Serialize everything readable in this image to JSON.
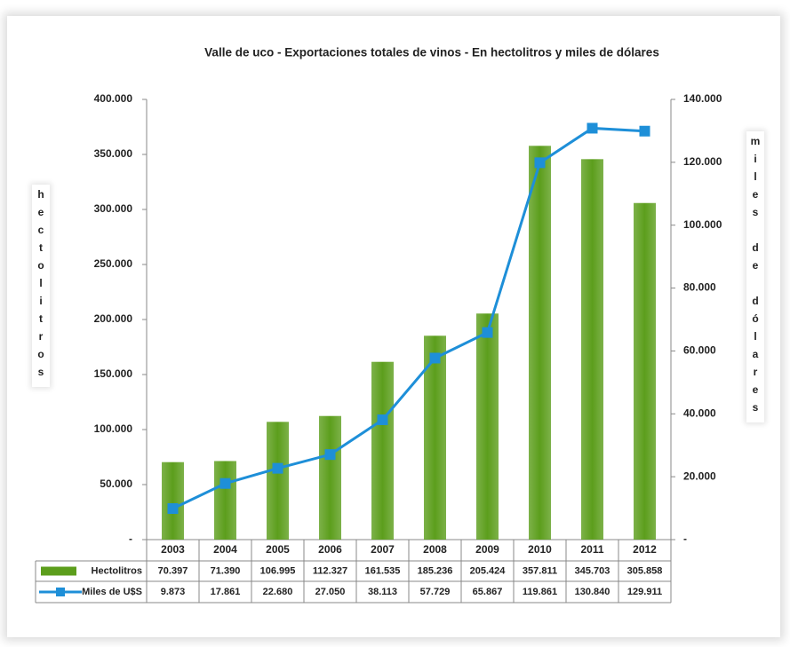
{
  "chart_data": {
    "type": "bar",
    "title": "Valle de uco - Exportaciones totales de vinos - En hectolitros y miles de dólares",
    "ylabel": "hectolitros",
    "y2label": "miles de dólares",
    "categories": [
      "2003",
      "2004",
      "2005",
      "2006",
      "2007",
      "2008",
      "2009",
      "2010",
      "2011",
      "2012"
    ],
    "series": [
      {
        "name": "Hectolitros",
        "type": "bar",
        "color": "#5c9e1c",
        "values": [
          70397,
          71390,
          106995,
          112327,
          161535,
          185236,
          205424,
          357811,
          345703,
          305858
        ],
        "value_labels": [
          "70.397",
          "71.390",
          "106.995",
          "112.327",
          "161.535",
          "185.236",
          "205.424",
          "357.811",
          "345.703",
          "305.858"
        ]
      },
      {
        "name": "Miles de U$S",
        "type": "line",
        "axis": "y2",
        "color": "#1e8fd8",
        "values": [
          9873,
          17861,
          22680,
          27050,
          38113,
          57729,
          65867,
          119861,
          130840,
          129911
        ],
        "value_labels": [
          "9.873",
          "17.861",
          "22.680",
          "27.050",
          "38.113",
          "57.729",
          "65.867",
          "119.861",
          "130.840",
          "129.911"
        ]
      }
    ],
    "ylim": [
      0,
      400000
    ],
    "yticks": [
      {
        "value": 0,
        "label": "-"
      },
      {
        "value": 50000,
        "label": "50.000"
      },
      {
        "value": 100000,
        "label": "100.000"
      },
      {
        "value": 150000,
        "label": "150.000"
      },
      {
        "value": 200000,
        "label": "200.000"
      },
      {
        "value": 250000,
        "label": "250.000"
      },
      {
        "value": 300000,
        "label": "300.000"
      },
      {
        "value": 350000,
        "label": "350.000"
      },
      {
        "value": 400000,
        "label": "400.000"
      }
    ],
    "y2lim": [
      0,
      140000
    ],
    "y2ticks": [
      {
        "value": 0,
        "label": "-"
      },
      {
        "value": 20000,
        "label": "20.000"
      },
      {
        "value": 40000,
        "label": "40.000"
      },
      {
        "value": 60000,
        "label": "60.000"
      },
      {
        "value": 80000,
        "label": "80.000"
      },
      {
        "value": 100000,
        "label": "100.000"
      },
      {
        "value": 120000,
        "label": "120.000"
      },
      {
        "value": 140000,
        "label": "140.000"
      }
    ],
    "grid": false
  }
}
